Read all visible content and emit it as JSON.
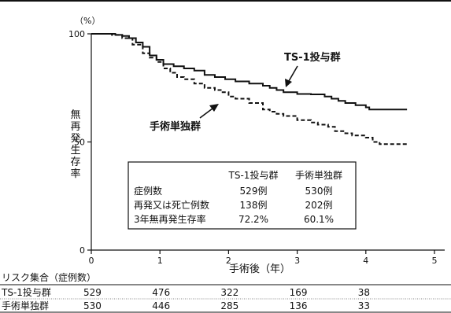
{
  "chart_data": {
    "type": "line",
    "y_unit": "（%）",
    "ylabel": "無再発生存率",
    "xlabel": "手術後（年）",
    "xlim": [
      0,
      5
    ],
    "ylim": [
      0,
      100
    ],
    "x_ticks": [
      "0",
      "1",
      "2",
      "3",
      "4",
      "5"
    ],
    "y_ticks": [
      "0",
      "50",
      "100"
    ],
    "series": [
      {
        "name": "TS-1投与群",
        "style": "solid",
        "points": [
          [
            0,
            100
          ],
          [
            0.2,
            100
          ],
          [
            0.35,
            99.5
          ],
          [
            0.45,
            99
          ],
          [
            0.55,
            98
          ],
          [
            0.65,
            96
          ],
          [
            0.75,
            94
          ],
          [
            0.85,
            90
          ],
          [
            0.95,
            88
          ],
          [
            1.05,
            86
          ],
          [
            1.2,
            85
          ],
          [
            1.35,
            84
          ],
          [
            1.5,
            83
          ],
          [
            1.65,
            81
          ],
          [
            1.8,
            80
          ],
          [
            1.95,
            79
          ],
          [
            2.1,
            78
          ],
          [
            2.3,
            77
          ],
          [
            2.5,
            76
          ],
          [
            2.6,
            75
          ],
          [
            2.7,
            74
          ],
          [
            2.8,
            73
          ],
          [
            3.0,
            72.2
          ],
          [
            3.2,
            72
          ],
          [
            3.4,
            71
          ],
          [
            3.5,
            70
          ],
          [
            3.6,
            69
          ],
          [
            3.7,
            68
          ],
          [
            3.85,
            67
          ],
          [
            4.0,
            66
          ],
          [
            4.05,
            65
          ],
          [
            4.6,
            65
          ]
        ]
      },
      {
        "name": "手術単独群",
        "style": "dashed",
        "points": [
          [
            0,
            100
          ],
          [
            0.3,
            99.5
          ],
          [
            0.45,
            98
          ],
          [
            0.6,
            95
          ],
          [
            0.75,
            91
          ],
          [
            0.85,
            89
          ],
          [
            0.95,
            87
          ],
          [
            1.05,
            84
          ],
          [
            1.15,
            82
          ],
          [
            1.25,
            80
          ],
          [
            1.35,
            79
          ],
          [
            1.5,
            77
          ],
          [
            1.65,
            75
          ],
          [
            1.8,
            74
          ],
          [
            1.9,
            73
          ],
          [
            2.0,
            71
          ],
          [
            2.1,
            70
          ],
          [
            2.3,
            68
          ],
          [
            2.5,
            65
          ],
          [
            2.6,
            64
          ],
          [
            2.7,
            63
          ],
          [
            2.8,
            62
          ],
          [
            3.0,
            60.1
          ],
          [
            3.2,
            59
          ],
          [
            3.3,
            58
          ],
          [
            3.45,
            57
          ],
          [
            3.55,
            55
          ],
          [
            3.7,
            54
          ],
          [
            3.8,
            53
          ],
          [
            4.0,
            52
          ],
          [
            4.1,
            50
          ],
          [
            4.2,
            49
          ],
          [
            4.6,
            49
          ]
        ]
      }
    ],
    "annotations": [
      {
        "text": "TS-1投与群",
        "target_series": 0
      },
      {
        "text": "手術単独群",
        "target_series": 1
      }
    ],
    "inset_table": {
      "columns": [
        "",
        "TS-1投与群",
        "手術単独群"
      ],
      "rows": [
        [
          "症例数",
          "529例",
          "530例"
        ],
        [
          "再発又は死亡例数",
          "138例",
          "202例"
        ],
        [
          "3年無再発生存率",
          "72.2%",
          "60.1%"
        ]
      ]
    },
    "risk_table": {
      "title": "リスク集合（症例数）",
      "rows": [
        {
          "label": "TS-1投与群",
          "values": [
            "529",
            "476",
            "322",
            "169",
            "38"
          ]
        },
        {
          "label": "手術単独群",
          "values": [
            "530",
            "446",
            "285",
            "136",
            "33"
          ]
        }
      ]
    },
    "legend": "inset table, lower-center",
    "grid": false
  },
  "colors": {
    "line": "#111111",
    "background": "#ffffff"
  }
}
